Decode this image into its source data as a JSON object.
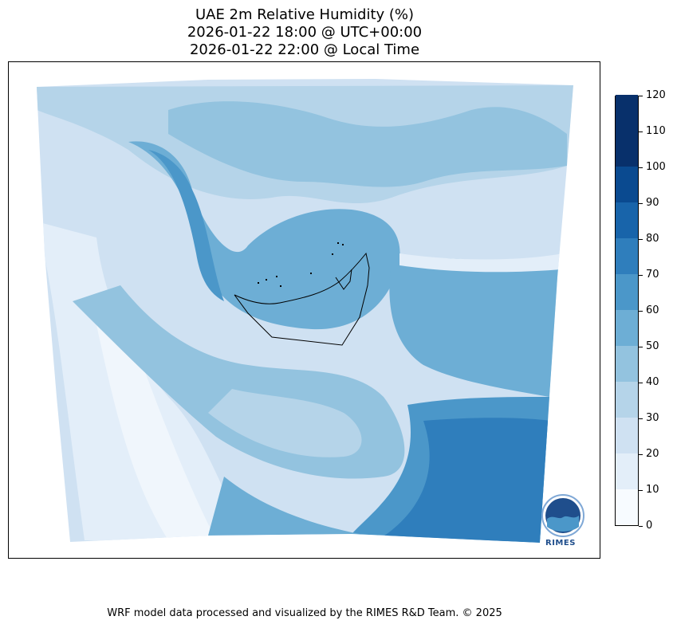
{
  "title": {
    "line1": "UAE 2m Relative Humidity (%)",
    "line2": "2026-01-22 18:00 @ UTC+00:00",
    "line3": "2026-01-22 22:00 @ Local Time"
  },
  "colorbar": {
    "ticks": [
      "0",
      "10",
      "20",
      "30",
      "40",
      "50",
      "60",
      "70",
      "80",
      "90",
      "100",
      "110",
      "120"
    ],
    "colors": [
      "#f7fbff",
      "#e3eef9",
      "#cfe1f2",
      "#b5d4e9",
      "#93c3df",
      "#6daed5",
      "#4b97c9",
      "#2f7ebc",
      "#1864aa",
      "#0a4a90",
      "#08306b",
      "#08306b"
    ]
  },
  "map": {
    "background_color": "#dde9f5",
    "dominant_colors": [
      "#cfe1f2",
      "#b5d4e9",
      "#93c3df",
      "#6daed5",
      "#4b97c9",
      "#2f7ebc"
    ]
  },
  "logo": {
    "text": "RIMES"
  },
  "footer": "WRF model data processed and visualized by the RIMES R&D Team. © 2025"
}
